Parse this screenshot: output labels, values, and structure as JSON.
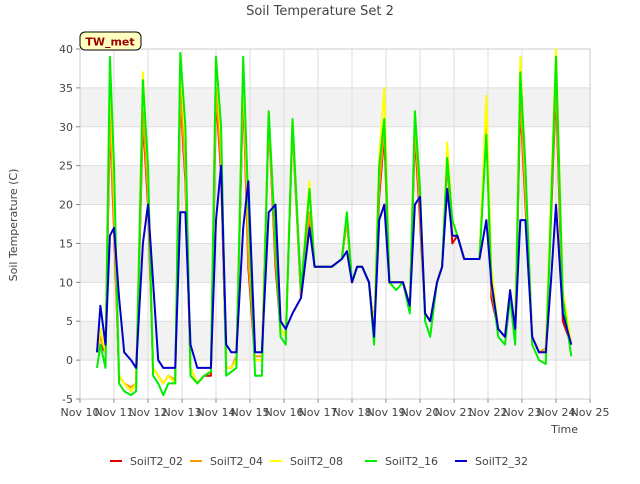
{
  "chart_data": {
    "type": "line",
    "title": "Soil Temperature Set 2",
    "xlabel": "Time",
    "ylabel": "Soil Temperature (C)",
    "annotation": "TW_met",
    "ylim": [
      -5,
      40
    ],
    "yticks": [
      -5,
      0,
      5,
      10,
      15,
      20,
      25,
      30,
      35,
      40
    ],
    "xlim": [
      10,
      25
    ],
    "xticks": [
      {
        "x": 10,
        "label": "Nov 10"
      },
      {
        "x": 11,
        "label": "Nov 11"
      },
      {
        "x": 12,
        "label": "Nov 12"
      },
      {
        "x": 13,
        "label": "Nov 13"
      },
      {
        "x": 14,
        "label": "Nov 14"
      },
      {
        "x": 15,
        "label": "Nov 15"
      },
      {
        "x": 16,
        "label": "Nov 16"
      },
      {
        "x": 17,
        "label": "Nov 17"
      },
      {
        "x": 18,
        "label": "Nov 18"
      },
      {
        "x": 19,
        "label": "Nov 19"
      },
      {
        "x": 20,
        "label": "Nov 20"
      },
      {
        "x": 21,
        "label": "Nov 21"
      },
      {
        "x": 22,
        "label": "Nov 22"
      },
      {
        "x": 23,
        "label": "Nov 23"
      },
      {
        "x": 24,
        "label": "Nov 24"
      },
      {
        "x": 25,
        "label": "Nov 25"
      }
    ],
    "grid": true,
    "legend_position": "bottom",
    "series": [
      {
        "name": "SoilT2_02",
        "color": "#dd0000",
        "x": [
          10.5,
          10.6,
          10.75,
          10.88,
          11.0,
          11.15,
          11.3,
          11.5,
          11.65,
          11.85,
          12.0,
          12.15,
          12.3,
          12.45,
          12.6,
          12.8,
          12.95,
          13.1,
          13.25,
          13.45,
          13.65,
          13.85,
          14.0,
          14.15,
          14.3,
          14.45,
          14.6,
          14.8,
          14.95,
          15.15,
          15.35,
          15.55,
          15.75,
          15.9,
          16.05,
          16.25,
          16.5,
          16.75,
          16.9,
          17.1,
          17.4,
          17.7,
          17.85,
          18.0,
          18.15,
          18.3,
          18.5,
          18.65,
          18.8,
          18.95,
          19.1,
          19.3,
          19.5,
          19.7,
          19.85,
          20.0,
          20.15,
          20.3,
          20.5,
          20.65,
          20.8,
          20.95,
          21.1,
          21.3,
          21.5,
          21.75,
          21.95,
          22.1,
          22.3,
          22.5,
          22.65,
          22.8,
          22.95,
          23.1,
          23.3,
          23.5,
          23.7,
          23.85,
          24.0,
          24.2,
          24.45
        ],
        "y": [
          1,
          2,
          1,
          31,
          17,
          -2,
          -3,
          -4,
          -3,
          31,
          20,
          -1,
          -2,
          -3,
          -2,
          -3,
          34,
          23,
          -1,
          -3,
          -2,
          -2,
          34,
          24,
          -1,
          -1,
          0,
          35,
          12,
          0,
          0,
          31,
          12,
          4,
          3,
          30,
          8,
          18,
          12,
          12,
          12,
          13,
          18,
          10,
          12,
          12,
          10,
          4,
          21,
          29,
          10,
          10,
          10,
          7,
          29,
          18,
          6,
          5,
          10,
          12,
          26,
          15,
          16,
          13,
          13,
          13,
          32,
          8,
          4,
          3,
          8,
          4,
          33,
          20,
          3,
          1,
          1,
          18,
          35,
          5,
          2
        ]
      },
      {
        "name": "SoilT2_04",
        "color": "#ff9900",
        "x": [
          10.5,
          10.6,
          10.75,
          10.88,
          11.0,
          11.15,
          11.3,
          11.5,
          11.65,
          11.85,
          12.0,
          12.15,
          12.3,
          12.45,
          12.6,
          12.8,
          12.95,
          13.1,
          13.25,
          13.45,
          13.65,
          13.85,
          14.0,
          14.15,
          14.3,
          14.45,
          14.6,
          14.8,
          14.95,
          15.15,
          15.35,
          15.55,
          15.75,
          15.9,
          16.05,
          16.25,
          16.5,
          16.75,
          16.9,
          17.1,
          17.4,
          17.7,
          17.85,
          18.0,
          18.15,
          18.3,
          18.5,
          18.65,
          18.8,
          18.95,
          19.1,
          19.3,
          19.5,
          19.7,
          19.85,
          20.0,
          20.15,
          20.3,
          20.5,
          20.65,
          20.8,
          20.95,
          21.1,
          21.3,
          21.5,
          21.75,
          21.95,
          22.1,
          22.3,
          22.5,
          22.65,
          22.8,
          22.95,
          23.1,
          23.3,
          23.5,
          23.7,
          23.85,
          24.0,
          24.2,
          24.45
        ],
        "y": [
          1,
          3,
          1,
          32,
          18,
          -2,
          -3,
          -3.5,
          -3,
          32,
          21,
          -1,
          -2,
          -3,
          -2,
          -2.5,
          35,
          24,
          -1,
          -3,
          -2,
          -1.5,
          35,
          25,
          -1,
          -1,
          0.5,
          36,
          13,
          0.5,
          0.5,
          31,
          13,
          4,
          3,
          30,
          8,
          19,
          12,
          12,
          12,
          13,
          18,
          10,
          12,
          12,
          10,
          4,
          22,
          30,
          10,
          10,
          10,
          7,
          30,
          19,
          6,
          5,
          10,
          12,
          26,
          16,
          16,
          13,
          13,
          13,
          32,
          9,
          4,
          3,
          8,
          4,
          34,
          21,
          3,
          1,
          1.5,
          19,
          36,
          6,
          2
        ]
      },
      {
        "name": "SoilT2_08",
        "color": "#ffff00",
        "x": [
          10.5,
          10.6,
          10.75,
          10.88,
          11.0,
          11.15,
          11.3,
          11.5,
          11.65,
          11.85,
          12.0,
          12.15,
          12.3,
          12.45,
          12.6,
          12.8,
          12.95,
          13.1,
          13.25,
          13.45,
          13.65,
          13.85,
          14.0,
          14.15,
          14.3,
          14.45,
          14.6,
          14.8,
          14.95,
          15.15,
          15.35,
          15.55,
          15.75,
          15.9,
          16.05,
          16.25,
          16.5,
          16.75,
          16.9,
          17.1,
          17.4,
          17.7,
          17.85,
          18.0,
          18.15,
          18.3,
          18.5,
          18.65,
          18.8,
          18.95,
          19.1,
          19.3,
          19.5,
          19.7,
          19.85,
          20.0,
          20.15,
          20.3,
          20.5,
          20.65,
          20.8,
          20.95,
          21.1,
          21.3,
          21.5,
          21.75,
          21.95,
          22.1,
          22.3,
          22.5,
          22.65,
          22.8,
          22.95,
          23.1,
          23.3,
          23.5,
          23.7,
          23.85,
          24.0,
          24.2,
          24.45
        ],
        "y": [
          1,
          4,
          1,
          38,
          22,
          -2,
          -3,
          -4,
          -3,
          37,
          24,
          -1,
          -2,
          -3,
          -2,
          -3,
          39,
          28,
          -1,
          -3,
          -2,
          -1.5,
          39,
          28,
          -1,
          -1,
          0,
          38,
          18,
          0,
          0,
          32,
          15,
          4,
          3,
          31,
          9,
          23,
          12,
          12,
          12,
          13,
          19,
          10,
          12,
          12,
          10,
          4,
          26,
          35,
          10,
          10,
          10,
          7,
          32,
          22,
          6,
          5,
          10,
          12,
          28,
          18,
          16,
          13,
          13,
          13,
          34,
          12,
          4,
          3,
          9,
          4,
          39,
          24,
          3,
          1,
          1,
          21,
          40,
          9,
          2
        ]
      },
      {
        "name": "SoilT2_16",
        "color": "#00ee00",
        "x": [
          10.5,
          10.6,
          10.75,
          10.88,
          11.0,
          11.15,
          11.3,
          11.5,
          11.65,
          11.85,
          12.0,
          12.15,
          12.3,
          12.45,
          12.6,
          12.8,
          12.95,
          13.1,
          13.25,
          13.45,
          13.65,
          13.85,
          14.0,
          14.15,
          14.3,
          14.45,
          14.6,
          14.8,
          14.95,
          15.15,
          15.35,
          15.55,
          15.75,
          15.9,
          16.05,
          16.25,
          16.5,
          16.75,
          16.9,
          17.1,
          17.4,
          17.7,
          17.85,
          18.0,
          18.15,
          18.3,
          18.5,
          18.65,
          18.8,
          18.95,
          19.1,
          19.3,
          19.5,
          19.7,
          19.85,
          20.0,
          20.15,
          20.3,
          20.5,
          20.65,
          20.8,
          20.95,
          21.1,
          21.3,
          21.5,
          21.75,
          21.95,
          22.1,
          22.3,
          22.5,
          22.65,
          22.8,
          22.95,
          23.1,
          23.3,
          23.5,
          23.7,
          23.85,
          24.0,
          24.2,
          24.45
        ],
        "y": [
          -1,
          2,
          -1,
          39,
          25,
          -3,
          -4,
          -4.5,
          -4,
          36,
          25,
          -2,
          -3,
          -4.5,
          -3,
          -3,
          39.5,
          30,
          -2,
          -3,
          -2,
          -1.5,
          39,
          30,
          -2,
          -1.5,
          -1,
          39,
          20,
          -2,
          -2,
          32,
          15,
          3,
          2,
          31,
          9,
          22,
          12,
          12,
          12,
          13,
          19,
          10,
          12,
          12,
          10,
          2,
          25,
          31,
          10,
          9,
          10,
          6,
          32,
          22,
          5,
          3,
          10,
          12,
          26,
          18,
          16,
          13,
          13,
          13,
          29,
          10,
          3,
          2,
          8,
          2,
          37,
          25,
          2,
          0,
          -0.5,
          19,
          39,
          8,
          0.5
        ]
      },
      {
        "name": "SoilT2_32",
        "color": "#0000cc",
        "x": [
          10.5,
          10.6,
          10.75,
          10.88,
          11.0,
          11.15,
          11.3,
          11.5,
          11.65,
          11.85,
          12.0,
          12.15,
          12.3,
          12.45,
          12.6,
          12.8,
          12.95,
          13.1,
          13.25,
          13.45,
          13.65,
          13.85,
          14.0,
          14.15,
          14.3,
          14.45,
          14.6,
          14.8,
          14.95,
          15.15,
          15.35,
          15.55,
          15.75,
          15.9,
          16.05,
          16.25,
          16.5,
          16.75,
          16.9,
          17.1,
          17.4,
          17.7,
          17.85,
          18.0,
          18.15,
          18.3,
          18.5,
          18.65,
          18.8,
          18.95,
          19.1,
          19.3,
          19.5,
          19.7,
          19.85,
          20.0,
          20.15,
          20.3,
          20.5,
          20.65,
          20.8,
          20.95,
          21.1,
          21.3,
          21.5,
          21.75,
          21.95,
          22.1,
          22.3,
          22.5,
          22.65,
          22.8,
          22.95,
          23.1,
          23.3,
          23.5,
          23.7,
          23.85,
          24.0,
          24.2,
          24.45
        ],
        "y": [
          1,
          7,
          2,
          16,
          17,
          8,
          1,
          0,
          -1,
          15,
          20,
          10,
          0,
          -1,
          -1,
          -1,
          19,
          19,
          2,
          -1,
          -1,
          -1,
          18,
          25,
          2,
          1,
          1,
          17,
          23,
          1,
          1,
          19,
          20,
          5,
          4,
          6,
          8,
          17,
          12,
          12,
          12,
          13,
          14,
          10,
          12,
          12,
          10,
          3,
          18,
          20,
          10,
          10,
          10,
          7,
          20,
          21,
          6,
          5,
          10,
          12,
          22,
          16,
          16,
          13,
          13,
          13,
          18,
          10,
          4,
          3,
          9,
          4,
          18,
          18,
          3,
          1,
          1,
          10,
          20,
          6,
          2
        ]
      }
    ]
  }
}
